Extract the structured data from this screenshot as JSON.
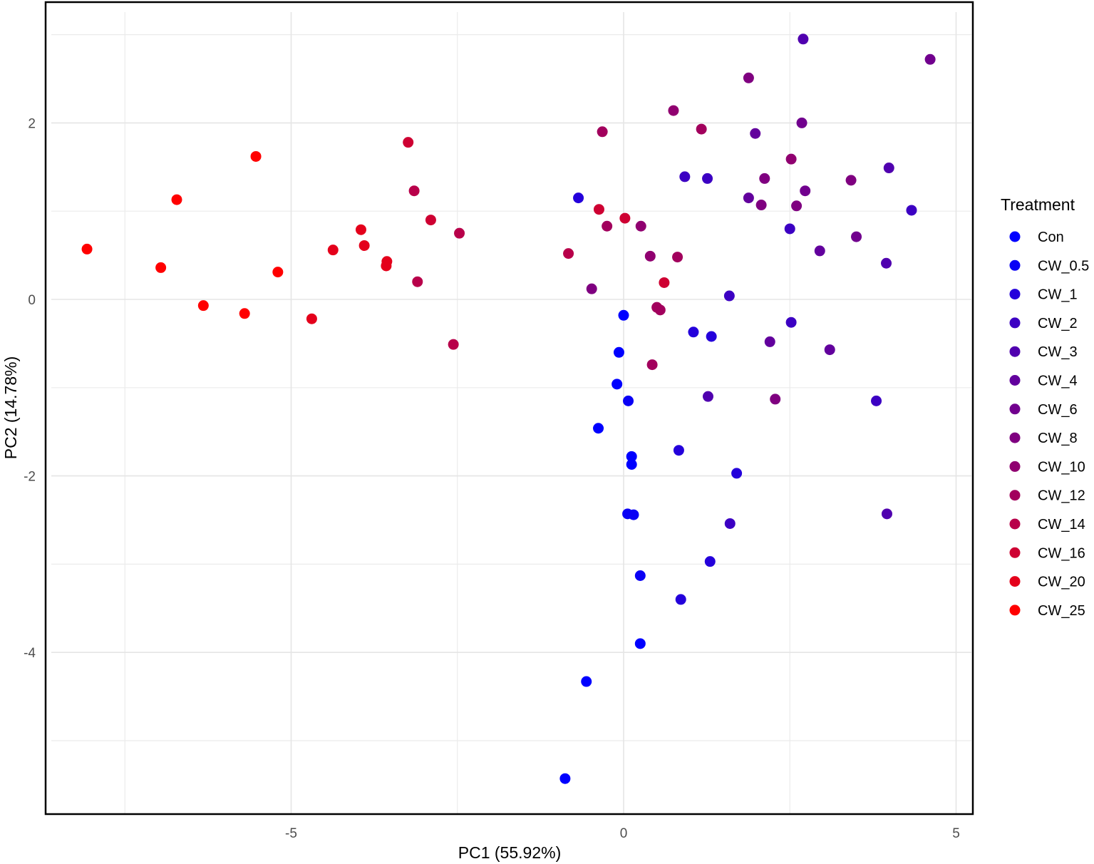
{
  "chart_data": {
    "type": "scatter",
    "title": "",
    "xlabel": "PC1 (55.92%)",
    "ylabel": "PC2 (14.78%)",
    "xlim": [
      -8.7,
      5.25
    ],
    "ylim": [
      -5.8,
      3.38
    ],
    "x_ticks": [
      -5,
      0,
      5
    ],
    "x_tick_labels": [
      "-5",
      "0",
      "5"
    ],
    "y_ticks": [
      -4,
      -2,
      0,
      2
    ],
    "y_tick_labels": [
      "-4",
      "-2",
      "0",
      "2"
    ],
    "grid": true,
    "legend": {
      "title": "Treatment",
      "position": "right",
      "entries": [
        {
          "label": "Con",
          "color": "#0000FF"
        },
        {
          "label": "CW_0.5",
          "color": "#0A00F5"
        },
        {
          "label": "CW_1",
          "color": "#2400DB"
        },
        {
          "label": "CW_2",
          "color": "#3C00C3"
        },
        {
          "label": "CW_3",
          "color": "#5000AF"
        },
        {
          "label": "CW_4",
          "color": "#62009D"
        },
        {
          "label": "CW_6",
          "color": "#71008E"
        },
        {
          "label": "CW_8",
          "color": "#7F0080"
        },
        {
          "label": "CW_10",
          "color": "#900070"
        },
        {
          "label": "CW_12",
          "color": "#A2005D"
        },
        {
          "label": "CW_14",
          "color": "#B8004A"
        },
        {
          "label": "CW_16",
          "color": "#CE0032"
        },
        {
          "label": "CW_20",
          "color": "#E4001B"
        },
        {
          "label": "CW_25",
          "color": "#FF0000"
        }
      ]
    },
    "series": [
      {
        "name": "Con",
        "color": "#0000FF",
        "points": [
          [
            -0.88,
            -5.43
          ],
          [
            -0.56,
            -4.33
          ],
          [
            0.25,
            -3.9
          ],
          [
            0.12,
            -1.87
          ],
          [
            0.12,
            -1.78
          ],
          [
            -0.38,
            -1.46
          ],
          [
            -0.1,
            -0.96
          ],
          [
            -0.07,
            -0.6
          ],
          [
            0.0,
            -0.18
          ]
        ]
      },
      {
        "name": "CW_0.5",
        "color": "#0A00F5",
        "points": [
          [
            0.25,
            -3.13
          ],
          [
            0.06,
            -2.43
          ],
          [
            0.15,
            -2.44
          ],
          [
            0.07,
            -1.15
          ]
        ]
      },
      {
        "name": "CW_1",
        "color": "#2400DB",
        "points": [
          [
            0.86,
            -3.4
          ],
          [
            1.3,
            -2.97
          ],
          [
            0.83,
            -1.71
          ],
          [
            1.7,
            -1.97
          ],
          [
            1.05,
            -0.37
          ],
          [
            1.32,
            -0.42
          ],
          [
            -0.68,
            1.15
          ]
        ]
      },
      {
        "name": "CW_2",
        "color": "#3C00C3",
        "points": [
          [
            1.6,
            -2.54
          ],
          [
            1.59,
            0.04
          ],
          [
            2.52,
            -0.26
          ],
          [
            3.8,
            -1.15
          ],
          [
            4.33,
            1.01
          ],
          [
            0.92,
            1.39
          ],
          [
            1.26,
            1.37
          ],
          [
            2.5,
            0.8
          ]
        ]
      },
      {
        "name": "CW_3",
        "color": "#5000AF",
        "points": [
          [
            1.27,
            -1.1
          ],
          [
            2.7,
            2.95
          ],
          [
            3.96,
            -2.43
          ],
          [
            3.95,
            0.41
          ],
          [
            3.99,
            1.49
          ]
        ]
      },
      {
        "name": "CW_4",
        "color": "#62009D",
        "points": [
          [
            2.2,
            -0.48
          ],
          [
            3.1,
            -0.57
          ],
          [
            2.95,
            0.55
          ],
          [
            1.98,
            1.88
          ],
          [
            1.88,
            1.15
          ]
        ]
      },
      {
        "name": "CW_6",
        "color": "#71008E",
        "points": [
          [
            2.68,
            2.0
          ],
          [
            4.61,
            2.72
          ],
          [
            2.73,
            1.23
          ],
          [
            3.5,
            0.71
          ]
        ]
      },
      {
        "name": "CW_8",
        "color": "#7F0080",
        "points": [
          [
            1.88,
            2.51
          ],
          [
            2.07,
            1.07
          ],
          [
            2.6,
            1.06
          ],
          [
            -0.48,
            0.12
          ],
          [
            2.28,
            -1.13
          ],
          [
            3.42,
            1.35
          ],
          [
            2.12,
            1.37
          ]
        ]
      },
      {
        "name": "CW_10",
        "color": "#900070",
        "points": [
          [
            0.75,
            2.14
          ],
          [
            0.4,
            0.49
          ],
          [
            0.26,
            0.83
          ],
          [
            2.52,
            1.59
          ]
        ]
      },
      {
        "name": "CW_12",
        "color": "#A2005D",
        "points": [
          [
            -0.32,
            1.9
          ],
          [
            1.17,
            1.93
          ],
          [
            -0.25,
            0.83
          ],
          [
            0.81,
            0.48
          ],
          [
            0.5,
            -0.09
          ],
          [
            0.55,
            -0.12
          ],
          [
            0.43,
            -0.74
          ]
        ]
      },
      {
        "name": "CW_14",
        "color": "#B8004A",
        "points": [
          [
            -0.83,
            0.52
          ],
          [
            -3.15,
            1.23
          ],
          [
            -2.47,
            0.75
          ],
          [
            -3.1,
            0.2
          ],
          [
            -2.56,
            -0.51
          ]
        ]
      },
      {
        "name": "CW_16",
        "color": "#CE0032",
        "points": [
          [
            -0.37,
            1.02
          ],
          [
            0.02,
            0.92
          ],
          [
            0.61,
            0.19
          ],
          [
            -2.9,
            0.9
          ],
          [
            -3.24,
            1.78
          ]
        ]
      },
      {
        "name": "CW_20",
        "color": "#E4001B",
        "points": [
          [
            -3.95,
            0.79
          ],
          [
            -3.9,
            0.61
          ],
          [
            -3.56,
            0.43
          ],
          [
            -3.57,
            0.38
          ],
          [
            -4.37,
            0.56
          ],
          [
            -4.69,
            -0.22
          ]
        ]
      },
      {
        "name": "CW_25",
        "color": "#FF0000",
        "points": [
          [
            -8.07,
            0.57
          ],
          [
            -6.96,
            0.36
          ],
          [
            -6.72,
            1.13
          ],
          [
            -6.32,
            -0.07
          ],
          [
            -5.7,
            -0.16
          ],
          [
            -5.53,
            1.62
          ],
          [
            -5.2,
            0.31
          ]
        ]
      }
    ]
  }
}
